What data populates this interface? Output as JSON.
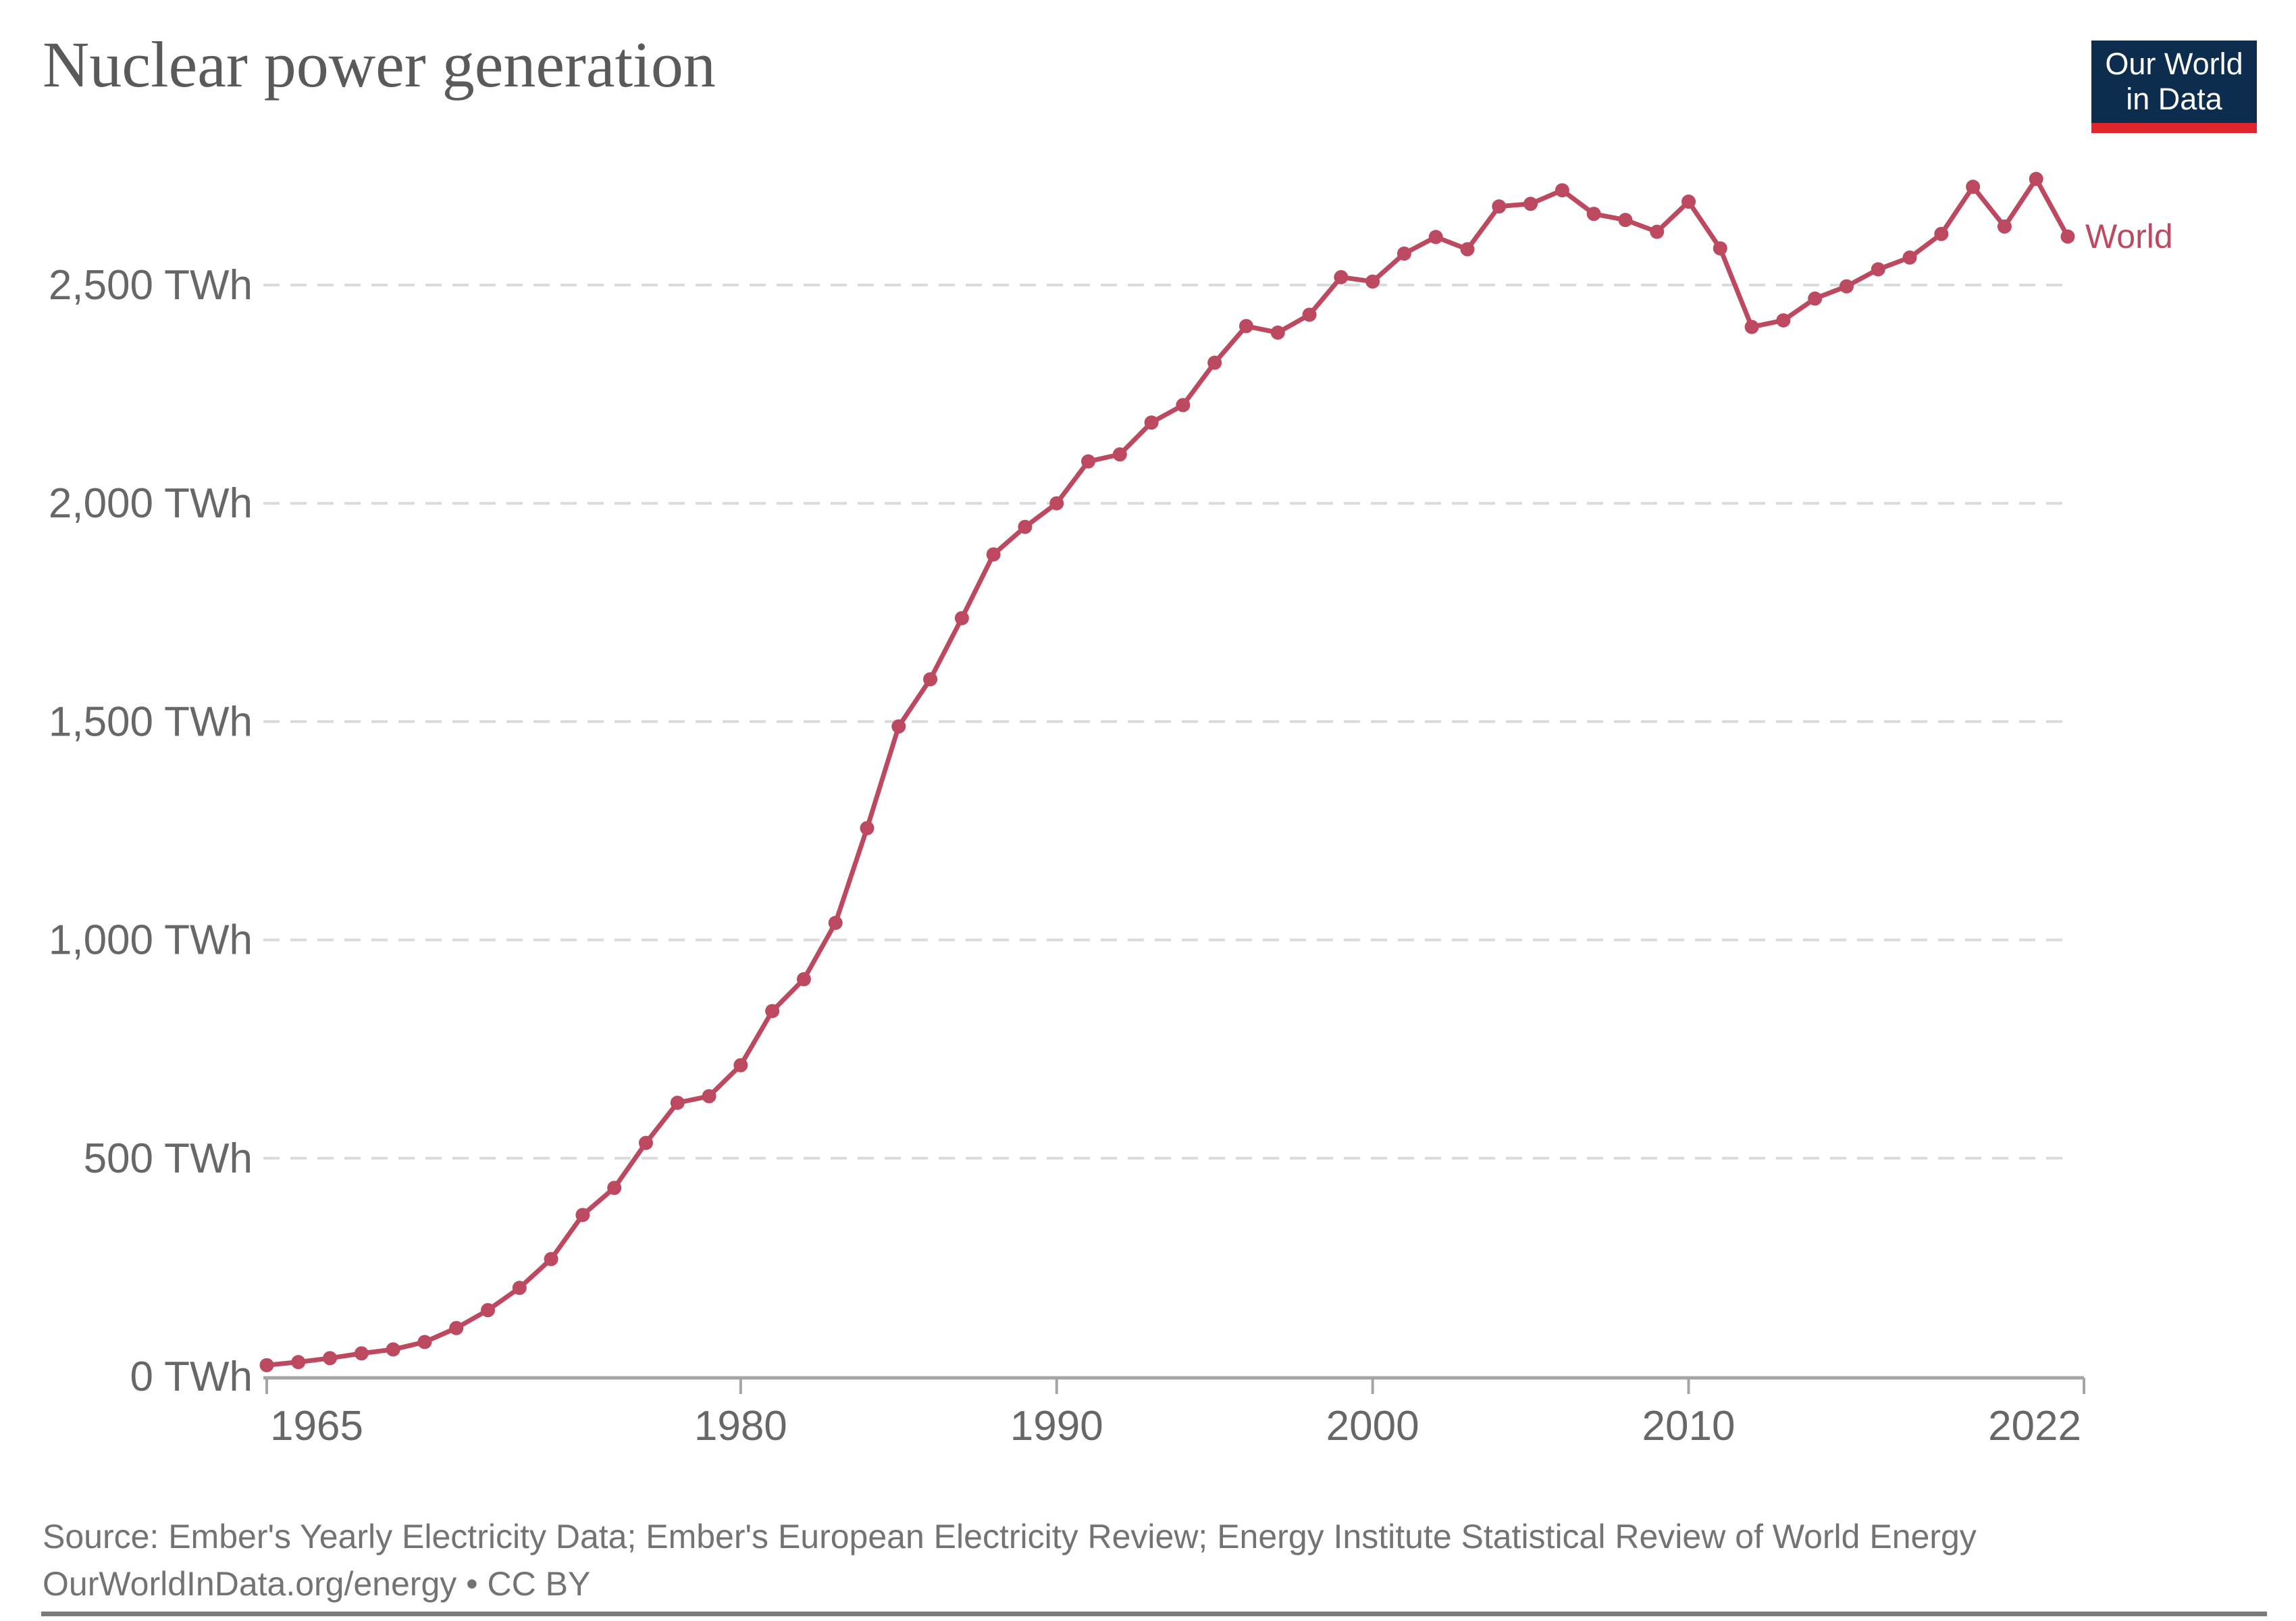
{
  "header": {
    "title": "Nuclear power generation"
  },
  "logo": {
    "line1": "Our World",
    "line2": "in Data",
    "bg_color": "#0c2d4d",
    "strip_color": "#e0262c"
  },
  "footer": {
    "source_line1": "Source: Ember's Yearly Electricity Data; Ember's European Electricity Review; Energy Institute Statistical Review of World Energy",
    "source_line2": "OurWorldInData.org/energy • CC BY"
  },
  "chart_data": {
    "type": "line",
    "title": "Nuclear power generation",
    "unit": "TWh",
    "series": [
      {
        "name": "World",
        "years": [
          1965,
          1966,
          1967,
          1968,
          1969,
          1970,
          1971,
          1972,
          1973,
          1974,
          1975,
          1976,
          1977,
          1978,
          1979,
          1980,
          1981,
          1982,
          1983,
          1984,
          1985,
          1986,
          1987,
          1988,
          1989,
          1990,
          1991,
          1992,
          1993,
          1994,
          1995,
          1996,
          1997,
          1998,
          1999,
          2000,
          2001,
          2002,
          2003,
          2004,
          2005,
          2006,
          2007,
          2008,
          2009,
          2010,
          2011,
          2012,
          2013,
          2014,
          2015,
          2016,
          2017,
          2018,
          2019,
          2020,
          2021,
          2022
        ],
        "values": [
          26,
          33,
          42,
          53,
          62,
          79,
          111,
          152,
          203,
          269,
          370,
          432,
          535,
          627,
          642,
          713,
          837,
          910,
          1039,
          1256,
          1489,
          1597,
          1737,
          1883,
          1946,
          2000,
          2096,
          2112,
          2185,
          2225,
          2322,
          2406,
          2391,
          2432,
          2518,
          2508,
          2572,
          2610,
          2582,
          2680,
          2686,
          2717,
          2663,
          2649,
          2622,
          2691,
          2584,
          2404,
          2419,
          2469,
          2497,
          2536,
          2563,
          2617,
          2725,
          2634,
          2743,
          2611
        ]
      }
    ],
    "series_end_label": "World",
    "x_ticks": [
      {
        "value": 1965,
        "label": "1965"
      },
      {
        "value": 1980,
        "label": "1980"
      },
      {
        "value": 1990,
        "label": "1990"
      },
      {
        "value": 2000,
        "label": "2000"
      },
      {
        "value": 2010,
        "label": "2010"
      },
      {
        "value": 2022,
        "label": "2022"
      }
    ],
    "y_ticks": [
      {
        "value": 0,
        "label": "0 TWh"
      },
      {
        "value": 500,
        "label": "500 TWh"
      },
      {
        "value": 1000,
        "label": "1,000 TWh"
      },
      {
        "value": 1500,
        "label": "1,500 TWh"
      },
      {
        "value": 2000,
        "label": "2,000 TWh"
      },
      {
        "value": 2500,
        "label": "2,500 TWh"
      }
    ],
    "xlim": [
      1965,
      2022
    ],
    "ylim": [
      0,
      2750
    ],
    "grid": "horizontal-dashed",
    "legend_position": "end-of-line",
    "line_color": "#bd4960",
    "grid_color": "#dadada",
    "axis_color": "#a5a5a5",
    "label_color": "#676767"
  }
}
